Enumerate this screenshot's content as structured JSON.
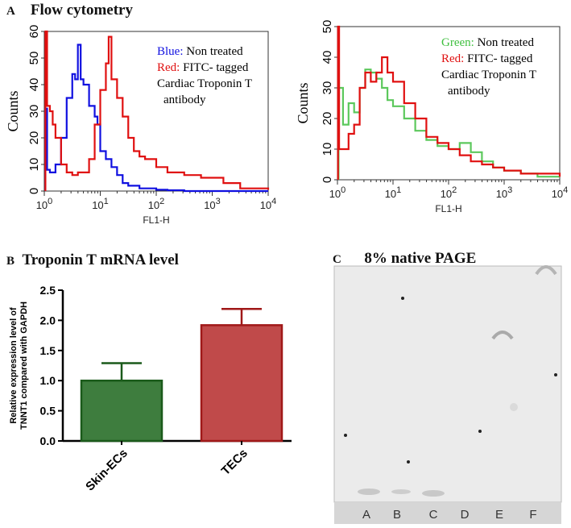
{
  "panels": {
    "a": {
      "letter": "A",
      "title": "Flow cytometry"
    },
    "b": {
      "letter": "B",
      "title": "Troponin T mRNA level"
    },
    "c": {
      "letter": "C",
      "title": "8% native PAGE"
    }
  },
  "chart_data": [
    {
      "type": "line",
      "subtype": "histogram",
      "xscale": "log",
      "xlim": [
        1,
        10000
      ],
      "ylim": [
        0,
        60
      ],
      "xlabel": "FL1-H",
      "ylabel": "Counts",
      "xticks": [
        "10^0",
        "10^1",
        "10^2",
        "10^3",
        "10^4"
      ],
      "yticks": [
        0,
        10,
        20,
        30,
        40,
        50,
        60
      ],
      "legend": [
        {
          "color_word": "Blue:",
          "text": "Non treated",
          "color": "#1010e0"
        },
        {
          "color_word": "Red:",
          "text": "FITC- tagged Cardiac Troponin  T antibody",
          "color": "#e01010"
        }
      ],
      "series": [
        {
          "color": "#1010e0",
          "x_log10": [
            0.02,
            0.05,
            0.1,
            0.2,
            0.3,
            0.4,
            0.5,
            0.55,
            0.6,
            0.65,
            0.7,
            0.8,
            0.9,
            0.95,
            1.0,
            1.1,
            1.2,
            1.3,
            1.4,
            1.5,
            1.7,
            2.0,
            2.2,
            2.5,
            4
          ],
          "y": [
            31,
            8,
            7,
            10,
            20,
            35,
            44,
            42,
            55,
            42,
            40,
            32,
            28,
            25,
            15,
            12,
            9,
            6,
            3,
            2,
            1,
            0.5,
            0.3,
            0,
            0
          ]
        },
        {
          "color": "#e01010",
          "x_log10": [
            0.02,
            0.05,
            0.1,
            0.15,
            0.2,
            0.3,
            0.4,
            0.5,
            0.6,
            0.7,
            0.8,
            0.9,
            1.0,
            1.1,
            1.15,
            1.2,
            1.3,
            1.4,
            1.5,
            1.6,
            1.7,
            1.8,
            2.0,
            2.2,
            2.5,
            2.8,
            3.0,
            3.2,
            3.5,
            4
          ],
          "y": [
            60,
            32,
            30,
            25,
            20,
            10,
            7,
            6,
            7,
            7,
            12,
            25,
            38,
            48,
            58,
            42,
            35,
            28,
            20,
            15,
            13,
            12,
            9,
            7,
            6,
            5,
            5,
            3,
            1,
            0.5
          ]
        }
      ]
    },
    {
      "type": "line",
      "subtype": "histogram",
      "xscale": "log",
      "xlim": [
        1,
        10000
      ],
      "ylim": [
        0,
        50
      ],
      "xlabel": "FL1-H",
      "ylabel": "Counts",
      "xticks": [
        "10^0",
        "10^1",
        "10^2",
        "10^3",
        "10^4"
      ],
      "yticks": [
        0,
        10,
        20,
        30,
        40,
        50
      ],
      "legend": [
        {
          "color_word": "Green:",
          "text": "Non treated",
          "color": "#40c040"
        },
        {
          "color_word": "Red:",
          "text": "FITC- tagged Cardiac Troponin  T antibody",
          "color": "#e01010"
        }
      ],
      "series": [
        {
          "color": "#5cc85c",
          "x_log10": [
            0.02,
            0.1,
            0.2,
            0.3,
            0.4,
            0.5,
            0.6,
            0.7,
            0.8,
            0.9,
            1.0,
            1.2,
            1.4,
            1.6,
            1.8,
            2.0,
            2.2,
            2.4,
            2.6,
            2.8,
            3.0,
            3.3,
            3.6,
            4
          ],
          "y": [
            30,
            18,
            25,
            22,
            30,
            36,
            35,
            33,
            30,
            26,
            24,
            20,
            16,
            13,
            11,
            10,
            12,
            9,
            6,
            4,
            3,
            2,
            1,
            1
          ]
        },
        {
          "color": "#e01010",
          "x_log10": [
            0.01,
            0.03,
            0.1,
            0.2,
            0.3,
            0.4,
            0.5,
            0.6,
            0.7,
            0.8,
            0.9,
            1.0,
            1.2,
            1.4,
            1.6,
            1.8,
            2.0,
            2.2,
            2.4,
            2.6,
            2.8,
            3.0,
            3.3,
            3.6,
            4
          ],
          "y": [
            50,
            10,
            10,
            15,
            18,
            30,
            35,
            32,
            35,
            40,
            35,
            32,
            25,
            20,
            14,
            12,
            10,
            8,
            6,
            5,
            4,
            3,
            2,
            2,
            1
          ]
        }
      ]
    },
    {
      "type": "bar",
      "categories": [
        "Skin-ECs",
        "TECs"
      ],
      "values": [
        1.0,
        1.92
      ],
      "errors": [
        0.29,
        0.27
      ],
      "colors": [
        "#3e7d3e",
        "#c04a4a"
      ],
      "edge_colors": [
        "#1a5a1a",
        "#a01818"
      ],
      "ylabel": "Relative expression level of TNNT1 compared with GAPDH",
      "ylim": [
        0,
        2.5
      ],
      "yticks": [
        "0.0",
        "0.5",
        "1.0",
        "1.5",
        "2.0",
        "2.5"
      ]
    }
  ],
  "gel": {
    "lanes": [
      "A",
      "B",
      "C",
      "D",
      "E",
      "F"
    ]
  }
}
